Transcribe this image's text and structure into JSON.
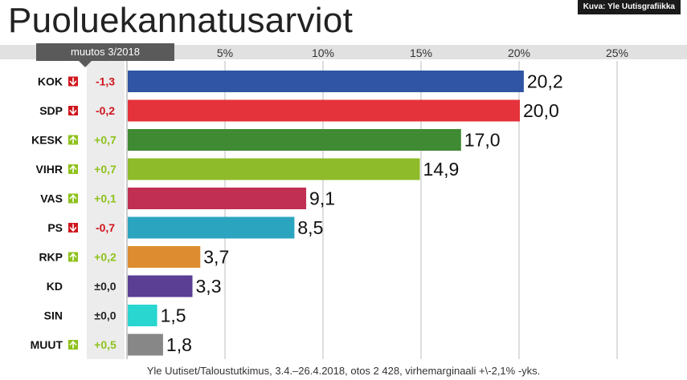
{
  "header": {
    "title": "Puoluekannatusarviot",
    "credit": "Kuva: Yle Uutisgrafiikka",
    "change_header": "muutos 3/2018"
  },
  "footer": {
    "source": "Yle Uutiset/Taloustutkimus, 3.4.–26.4.2018, otos 2 428, virhemarginaali +\\-2,1% -yks."
  },
  "colors": {
    "up": "#8ec21b",
    "down": "#d0161e",
    "neutral": "#222222"
  },
  "chart_data": {
    "type": "bar",
    "orientation": "horizontal",
    "title": "Puoluekannatusarviot",
    "xlim": [
      0,
      25
    ],
    "x_ticks": [
      "5%",
      "10%",
      "15%",
      "20%",
      "25%"
    ],
    "x_tick_values": [
      5,
      10,
      15,
      20,
      25
    ],
    "grid": true,
    "categories": [
      "KOK",
      "SDP",
      "KESK",
      "VIHR",
      "VAS",
      "PS",
      "RKP",
      "KD",
      "SIN",
      "MUUT"
    ],
    "values": [
      20.2,
      20.0,
      17.0,
      14.9,
      9.1,
      8.5,
      3.7,
      3.3,
      1.5,
      1.8
    ],
    "value_labels": [
      "20,2",
      "20,0",
      "17,0",
      "14,9",
      "9,1",
      "8,5",
      "3,7",
      "3,3",
      "1,5",
      "1,8"
    ],
    "changes": [
      "-1,3",
      "-0,2",
      "+0,7",
      "+0,7",
      "+0,1",
      "-0,7",
      "+0,2",
      "±0,0",
      "±0,0",
      "+0,5"
    ],
    "change_direction": [
      "down",
      "down",
      "up",
      "up",
      "up",
      "down",
      "up",
      "none",
      "none",
      "up"
    ],
    "bar_colors": [
      "#2f55a4",
      "#e4333b",
      "#3f8a33",
      "#8dbb2a",
      "#c12f52",
      "#2ba5bf",
      "#dd8d2f",
      "#5a3f94",
      "#2ad6d0",
      "#878787"
    ]
  }
}
